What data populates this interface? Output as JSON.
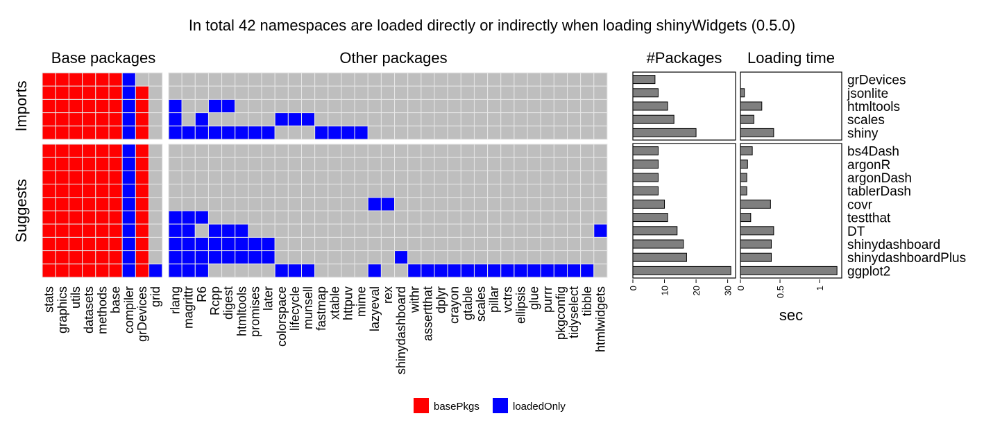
{
  "chart_data": {
    "type": "heatmap",
    "title": "In total 42 namespaces are loaded directly or indirectly when loading shinyWidgets (0.5.0)",
    "panels": {
      "base_title": "Base packages",
      "other_title": "Other packages",
      "count_title": "#Packages",
      "time_title": "Loading time"
    },
    "facets": [
      "Imports",
      "Suggests"
    ],
    "base_packages": [
      "stats",
      "graphics",
      "utils",
      "datasets",
      "methods",
      "base",
      "compiler",
      "grDevices",
      "grid"
    ],
    "other_packages": [
      "rlang",
      "magrittr",
      "R6",
      "Rcpp",
      "digest",
      "htmltools",
      "promises",
      "later",
      "colorspace",
      "lifecycle",
      "munsell",
      "fastmap",
      "xtable",
      "httpuv",
      "mime",
      "lazyeval",
      "rex",
      "shinydashboard",
      "withr",
      "assertthat",
      "dplyr",
      "crayon",
      "gtable",
      "scales",
      "pillar",
      "vctrs",
      "ellipsis",
      "glue",
      "purrr",
      "pkgconfig",
      "tidyselect",
      "tibble",
      "htmlwidgets"
    ],
    "rows": [
      {
        "name": "grDevices",
        "facet": "Imports",
        "count": 7,
        "time": 0,
        "base": [
          "basePkgs",
          "basePkgs",
          "basePkgs",
          "basePkgs",
          "basePkgs",
          "basePkgs",
          "loadedOnly",
          "",
          ""
        ],
        "other": []
      },
      {
        "name": "jsonlite",
        "facet": "Imports",
        "count": 8,
        "time": 0.05,
        "base": [
          "basePkgs",
          "basePkgs",
          "basePkgs",
          "basePkgs",
          "basePkgs",
          "basePkgs",
          "loadedOnly",
          "basePkgs",
          ""
        ],
        "other": []
      },
      {
        "name": "htmltools",
        "facet": "Imports",
        "count": 11,
        "time": 0.27,
        "base": [
          "basePkgs",
          "basePkgs",
          "basePkgs",
          "basePkgs",
          "basePkgs",
          "basePkgs",
          "loadedOnly",
          "basePkgs",
          ""
        ],
        "other": [
          "rlang",
          "Rcpp",
          "digest"
        ]
      },
      {
        "name": "scales",
        "facet": "Imports",
        "count": 13,
        "time": 0.17,
        "base": [
          "basePkgs",
          "basePkgs",
          "basePkgs",
          "basePkgs",
          "basePkgs",
          "basePkgs",
          "loadedOnly",
          "basePkgs",
          ""
        ],
        "other": [
          "rlang",
          "R6",
          "colorspace",
          "lifecycle",
          "munsell"
        ]
      },
      {
        "name": "shiny",
        "facet": "Imports",
        "count": 20,
        "time": 0.42,
        "base": [
          "basePkgs",
          "basePkgs",
          "basePkgs",
          "basePkgs",
          "basePkgs",
          "basePkgs",
          "loadedOnly",
          "basePkgs",
          ""
        ],
        "other": [
          "rlang",
          "magrittr",
          "R6",
          "Rcpp",
          "digest",
          "htmltools",
          "promises",
          "later",
          "fastmap",
          "xtable",
          "httpuv",
          "mime"
        ]
      },
      {
        "name": "bs4Dash",
        "facet": "Suggests",
        "count": 8,
        "time": 0.15,
        "base": [
          "basePkgs",
          "basePkgs",
          "basePkgs",
          "basePkgs",
          "basePkgs",
          "basePkgs",
          "loadedOnly",
          "basePkgs",
          ""
        ],
        "other": []
      },
      {
        "name": "argonR",
        "facet": "Suggests",
        "count": 8,
        "time": 0.09,
        "base": [
          "basePkgs",
          "basePkgs",
          "basePkgs",
          "basePkgs",
          "basePkgs",
          "basePkgs",
          "loadedOnly",
          "basePkgs",
          ""
        ],
        "other": []
      },
      {
        "name": "argonDash",
        "facet": "Suggests",
        "count": 8,
        "time": 0.08,
        "base": [
          "basePkgs",
          "basePkgs",
          "basePkgs",
          "basePkgs",
          "basePkgs",
          "basePkgs",
          "loadedOnly",
          "basePkgs",
          ""
        ],
        "other": []
      },
      {
        "name": "tablerDash",
        "facet": "Suggests",
        "count": 8,
        "time": 0.08,
        "base": [
          "basePkgs",
          "basePkgs",
          "basePkgs",
          "basePkgs",
          "basePkgs",
          "basePkgs",
          "loadedOnly",
          "basePkgs",
          ""
        ],
        "other": []
      },
      {
        "name": "covr",
        "facet": "Suggests",
        "count": 10,
        "time": 0.38,
        "base": [
          "basePkgs",
          "basePkgs",
          "basePkgs",
          "basePkgs",
          "basePkgs",
          "basePkgs",
          "loadedOnly",
          "basePkgs",
          ""
        ],
        "other": [
          "lazyeval",
          "rex"
        ]
      },
      {
        "name": "testthat",
        "facet": "Suggests",
        "count": 11,
        "time": 0.13,
        "base": [
          "basePkgs",
          "basePkgs",
          "basePkgs",
          "basePkgs",
          "basePkgs",
          "basePkgs",
          "loadedOnly",
          "basePkgs",
          ""
        ],
        "other": [
          "rlang",
          "magrittr",
          "R6"
        ]
      },
      {
        "name": "DT",
        "facet": "Suggests",
        "count": 14,
        "time": 0.42,
        "base": [
          "basePkgs",
          "basePkgs",
          "basePkgs",
          "basePkgs",
          "basePkgs",
          "basePkgs",
          "loadedOnly",
          "basePkgs",
          ""
        ],
        "other": [
          "rlang",
          "magrittr",
          "Rcpp",
          "digest",
          "htmltools",
          "htmlwidgets"
        ]
      },
      {
        "name": "shinydashboard",
        "facet": "Suggests",
        "count": 16,
        "time": 0.39,
        "base": [
          "basePkgs",
          "basePkgs",
          "basePkgs",
          "basePkgs",
          "basePkgs",
          "basePkgs",
          "loadedOnly",
          "basePkgs",
          ""
        ],
        "other": [
          "rlang",
          "magrittr",
          "R6",
          "Rcpp",
          "digest",
          "htmltools",
          "promises",
          "later"
        ]
      },
      {
        "name": "shinydashboardPlus",
        "facet": "Suggests",
        "count": 17,
        "time": 0.39,
        "base": [
          "basePkgs",
          "basePkgs",
          "basePkgs",
          "basePkgs",
          "basePkgs",
          "basePkgs",
          "loadedOnly",
          "basePkgs",
          ""
        ],
        "other": [
          "rlang",
          "magrittr",
          "R6",
          "Rcpp",
          "digest",
          "htmltools",
          "promises",
          "later",
          "shinydashboard"
        ]
      },
      {
        "name": "ggplot2",
        "facet": "Suggests",
        "count": 31,
        "time": 1.22,
        "base": [
          "basePkgs",
          "basePkgs",
          "basePkgs",
          "basePkgs",
          "basePkgs",
          "basePkgs",
          "loadedOnly",
          "basePkgs",
          "loadedOnly"
        ],
        "other": [
          "rlang",
          "magrittr",
          "R6",
          "colorspace",
          "lifecycle",
          "munsell",
          "lazyeval",
          "withr",
          "assertthat",
          "dplyr",
          "crayon",
          "gtable",
          "scales",
          "pillar",
          "vctrs",
          "ellipsis",
          "glue",
          "purrr",
          "pkgconfig",
          "tidyselect",
          "tibble"
        ]
      }
    ],
    "count_axis": {
      "ticks": [
        "0",
        "10",
        "20",
        "30"
      ],
      "range": [
        0,
        32.5
      ]
    },
    "time_axis": {
      "ticks": [
        "0",
        "0.5",
        "1"
      ],
      "range": [
        0,
        1.28
      ],
      "label": "sec"
    },
    "legend": {
      "position": "bottom",
      "items": [
        {
          "label": "basePkgs",
          "color": "#ff0000"
        },
        {
          "label": "loadedOnly",
          "color": "#0000ff"
        }
      ]
    },
    "colors": {
      "basePkgs": "#ff0000",
      "loadedOnly": "#0000ff",
      "empty": "#bebebe",
      "bar": "#7f7f7f"
    }
  }
}
